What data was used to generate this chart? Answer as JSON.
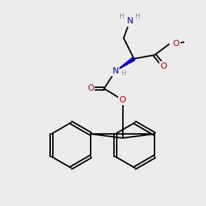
{
  "bg_color": "#ececec",
  "atom_colors": {
    "C": "#000000",
    "N": "#0000cc",
    "O": "#cc0000",
    "H": "#888888"
  },
  "bond_color": "#000000",
  "bond_width": 1.5,
  "font_size_atom": 9,
  "font_size_small": 7
}
